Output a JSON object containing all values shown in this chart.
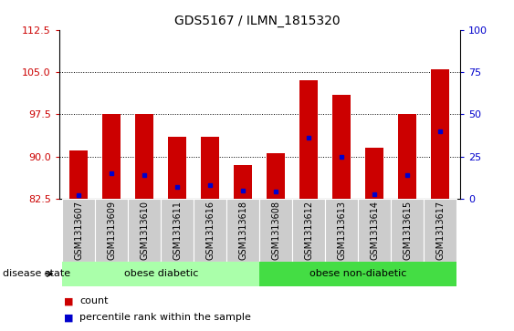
{
  "title": "GDS5167 / ILMN_1815320",
  "samples": [
    "GSM1313607",
    "GSM1313609",
    "GSM1313610",
    "GSM1313611",
    "GSM1313616",
    "GSM1313618",
    "GSM1313608",
    "GSM1313612",
    "GSM1313613",
    "GSM1313614",
    "GSM1313615",
    "GSM1313617"
  ],
  "counts": [
    91.0,
    97.5,
    97.5,
    93.5,
    93.5,
    88.5,
    90.5,
    103.5,
    101.0,
    91.5,
    97.5,
    105.5
  ],
  "percentile_ranks": [
    2.0,
    15.0,
    14.0,
    7.0,
    8.0,
    5.0,
    4.0,
    36.0,
    24.5,
    2.5,
    14.0,
    40.0
  ],
  "baseline": 82.5,
  "ylim_left": [
    82.5,
    112.5
  ],
  "ylim_right": [
    0,
    100
  ],
  "yticks_left": [
    82.5,
    90,
    97.5,
    105,
    112.5
  ],
  "yticks_right": [
    0,
    25,
    50,
    75,
    100
  ],
  "grid_values": [
    90,
    97.5,
    105
  ],
  "bar_color": "#cc0000",
  "percentile_color": "#0000cc",
  "group1_label": "obese diabetic",
  "group2_label": "obese non-diabetic",
  "group1_count": 6,
  "group2_count": 6,
  "group_bg_color1": "#aaffaa",
  "group_bg_color2": "#44dd44",
  "disease_state_label": "disease state",
  "legend_count_label": "count",
  "legend_percentile_label": "percentile rank within the sample",
  "bar_width": 0.55,
  "tick_area_color": "#cccccc",
  "title_fontsize": 10,
  "axis_fontsize": 8,
  "label_fontsize": 7
}
